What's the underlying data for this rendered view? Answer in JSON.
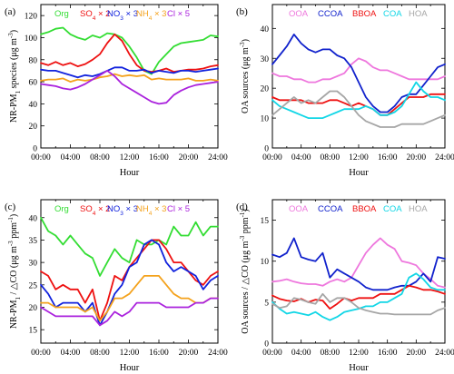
{
  "colors": {
    "green": "#33dd33",
    "red": "#ee1111",
    "blue": "#1122dd",
    "orange": "#f4a21c",
    "purple": "#aa22dd",
    "pink": "#ee77dd",
    "darkblue": "#1122cc",
    "cyan": "#11d6e6",
    "gray": "#a6a6a6"
  },
  "chart_data": [
    {
      "panel": "(a)",
      "type": "line",
      "ylabel": "NR-PM₁ species (μg m⁻³)",
      "ylabel_parts": {
        "pre": "NR-PM",
        "sub": "1",
        "mid": " species (μg m",
        "sup": "-3",
        "post": ")"
      },
      "xlabel": "Hour",
      "x": [
        0,
        1,
        2,
        3,
        4,
        5,
        6,
        7,
        8,
        9,
        10,
        11,
        12,
        13,
        14,
        15,
        16,
        17,
        18,
        19,
        20,
        21,
        22,
        23,
        24
      ],
      "xticks": [
        "00:00",
        "04:00",
        "08:00",
        "12:00",
        "16:00",
        "20:00",
        "24:00"
      ],
      "ylim": [
        0,
        130
      ],
      "yticks": [
        0,
        20,
        40,
        60,
        80,
        100,
        120
      ],
      "legend_position": "top",
      "legend": [
        {
          "label": "Org",
          "sub": "",
          "suffix": "",
          "color": "green"
        },
        {
          "label": "SO",
          "sub": "4",
          "suffix": " × 2",
          "color": "red"
        },
        {
          "label": "NO",
          "sub": "3",
          "suffix": " × 3",
          "color": "blue"
        },
        {
          "label": "NH",
          "sub": "4",
          "suffix": " × 3",
          "color": "orange"
        },
        {
          "label": "Cl",
          "sub": "",
          "suffix": " × 5",
          "color": "purple"
        }
      ],
      "series": [
        {
          "name": "Org",
          "color": "green",
          "values": [
            103,
            105,
            108,
            109,
            103,
            100,
            98,
            102,
            100,
            104,
            103,
            100,
            92,
            82,
            70,
            67,
            78,
            85,
            92,
            95,
            96,
            97,
            98,
            102,
            101
          ]
        },
        {
          "name": "SO4 × 2",
          "color": "red",
          "values": [
            77,
            75,
            78,
            75,
            77,
            74,
            76,
            80,
            85,
            95,
            103,
            97,
            85,
            75,
            70,
            69,
            70,
            72,
            69,
            70,
            71,
            71,
            72,
            74,
            75
          ]
        },
        {
          "name": "NO3 × 3",
          "color": "blue",
          "values": [
            71,
            70,
            70,
            68,
            66,
            64,
            66,
            65,
            67,
            70,
            73,
            73,
            70,
            70,
            71,
            68,
            70,
            69,
            68,
            70,
            70,
            69,
            70,
            71,
            72
          ]
        },
        {
          "name": "NH4 × 3",
          "color": "orange",
          "values": [
            61,
            62,
            62,
            63,
            60,
            62,
            61,
            62,
            64,
            65,
            67,
            65,
            66,
            65,
            66,
            62,
            63,
            62,
            62,
            62,
            63,
            61,
            61,
            62,
            61
          ]
        },
        {
          "name": "Cl × 5",
          "color": "purple",
          "values": [
            58,
            57,
            56,
            54,
            53,
            55,
            58,
            62,
            66,
            70,
            65,
            58,
            54,
            50,
            46,
            42,
            40,
            41,
            48,
            52,
            55,
            57,
            58,
            59,
            60
          ]
        }
      ]
    },
    {
      "panel": "(b)",
      "type": "line",
      "ylabel": "OA sources (μg m⁻³)",
      "ylabel_parts": {
        "pre": "OA sources (μg m",
        "sub": "",
        "mid": "",
        "sup": "-3",
        "post": ")"
      },
      "xlabel": "Hour",
      "x": [
        0,
        1,
        2,
        3,
        4,
        5,
        6,
        7,
        8,
        9,
        10,
        11,
        12,
        13,
        14,
        15,
        16,
        17,
        18,
        19,
        20,
        21,
        22,
        23,
        24
      ],
      "xticks": [
        "00:00",
        "04:00",
        "08:00",
        "12:00",
        "16:00",
        "20:00",
        "24:00"
      ],
      "ylim": [
        0,
        48
      ],
      "yticks": [
        0,
        10,
        20,
        30,
        40
      ],
      "legend_position": "top",
      "legend": [
        {
          "label": "OOA",
          "sub": "",
          "suffix": "",
          "color": "pink"
        },
        {
          "label": "CCOA",
          "sub": "",
          "suffix": "",
          "color": "darkblue"
        },
        {
          "label": "BBOA",
          "sub": "",
          "suffix": "",
          "color": "red"
        },
        {
          "label": "COA",
          "sub": "",
          "suffix": "",
          "color": "cyan"
        },
        {
          "label": "HOA",
          "sub": "",
          "suffix": "",
          "color": "gray"
        }
      ],
      "series": [
        {
          "name": "OOA",
          "color": "pink",
          "values": [
            25,
            24,
            24,
            23,
            23,
            22,
            22,
            23,
            23,
            24,
            25,
            28,
            30,
            29,
            27,
            26,
            26,
            25,
            24,
            23,
            23,
            23,
            23,
            23,
            24
          ]
        },
        {
          "name": "CCOA",
          "color": "darkblue",
          "values": [
            28,
            31,
            34,
            38,
            35,
            33,
            32,
            33,
            33,
            31,
            30,
            27,
            22,
            17,
            14,
            12,
            12,
            14,
            17,
            18,
            18,
            21,
            24,
            27,
            28
          ]
        },
        {
          "name": "BBOA",
          "color": "red",
          "values": [
            17,
            16,
            16,
            16,
            16,
            15,
            15,
            15,
            16,
            16,
            15,
            14,
            15,
            14,
            13,
            11,
            11,
            13,
            15,
            17,
            17,
            17,
            18,
            18,
            18
          ]
        },
        {
          "name": "COA",
          "color": "cyan",
          "values": [
            16,
            14,
            13,
            12,
            11,
            10,
            10,
            10,
            11,
            12,
            13,
            13,
            13,
            14,
            13,
            11,
            11,
            12,
            14,
            18,
            22,
            19,
            17,
            17,
            16
          ]
        },
        {
          "name": "HOA",
          "color": "gray",
          "values": [
            11,
            13,
            15,
            17,
            15,
            16,
            15,
            17,
            19,
            19,
            17,
            14,
            11,
            9,
            8,
            7,
            7,
            7,
            8,
            8,
            8,
            8,
            9,
            10,
            11
          ]
        }
      ]
    },
    {
      "panel": "(c)",
      "type": "line",
      "ylabel": "NR-PM₁ / ΔCO (μg m⁻³ ppm⁻¹)",
      "ylabel_parts": {
        "pre": "NR-PM",
        "sub": "1",
        "mid": " / △CO (μg m",
        "sup": "-3",
        "post": " ppm",
        "sup2": "-1",
        "post2": ")"
      },
      "xlabel": "Hour",
      "x": [
        0,
        1,
        2,
        3,
        4,
        5,
        6,
        7,
        8,
        9,
        10,
        11,
        12,
        13,
        14,
        15,
        16,
        17,
        18,
        19,
        20,
        21,
        22,
        23,
        24
      ],
      "xticks": [
        "00:00",
        "04:00",
        "08:00",
        "12:00",
        "16:00",
        "20:00",
        "24:00"
      ],
      "ylim": [
        12,
        44
      ],
      "yticks": [
        15,
        20,
        25,
        30,
        35,
        40
      ],
      "legend_position": "top",
      "legend": [
        {
          "label": "Org",
          "sub": "",
          "suffix": "",
          "color": "green"
        },
        {
          "label": "SO",
          "sub": "4",
          "suffix": " × 2",
          "color": "red"
        },
        {
          "label": "NO",
          "sub": "3",
          "suffix": " × 3",
          "color": "blue"
        },
        {
          "label": "NH",
          "sub": "4",
          "suffix": " × 3",
          "color": "orange"
        },
        {
          "label": "Cl",
          "sub": "",
          "suffix": " × 5",
          "color": "purple"
        }
      ],
      "series": [
        {
          "name": "Org",
          "color": "green",
          "values": [
            40,
            37,
            36,
            34,
            36,
            34,
            32,
            31,
            27,
            30,
            33,
            31,
            30,
            35,
            34,
            34,
            35,
            34,
            38,
            36,
            36,
            39,
            36,
            38,
            38
          ]
        },
        {
          "name": "SO4 × 2",
          "color": "red",
          "values": [
            28,
            27,
            24,
            25,
            24,
            24,
            21,
            24,
            17,
            21,
            27,
            26,
            29,
            31,
            33,
            35,
            35,
            33,
            30,
            30,
            28,
            26,
            25,
            27,
            28
          ]
        },
        {
          "name": "NO3 × 3",
          "color": "blue",
          "values": [
            25,
            23,
            20,
            21,
            21,
            21,
            19,
            21,
            16,
            19,
            23,
            25,
            29,
            30,
            34,
            35,
            34,
            30,
            28,
            29,
            28,
            27,
            24,
            26,
            27
          ]
        },
        {
          "name": "NH4 × 3",
          "color": "orange",
          "values": [
            21,
            21,
            20,
            20,
            20,
            20,
            19,
            20,
            17,
            19,
            22,
            22,
            23,
            25,
            27,
            27,
            27,
            25,
            23,
            22,
            22,
            21,
            21,
            22,
            22
          ]
        },
        {
          "name": "Cl × 5",
          "color": "purple",
          "values": [
            20,
            19,
            18,
            18,
            18,
            18,
            18,
            18,
            16,
            17,
            19,
            18,
            19,
            21,
            21,
            21,
            21,
            20,
            20,
            20,
            20,
            21,
            21,
            22,
            22
          ]
        }
      ]
    },
    {
      "panel": "(d)",
      "type": "line",
      "ylabel": "OA sources / ΔCO (μg m⁻³ ppm⁻¹)",
      "ylabel_parts": {
        "pre": "OA sources / △CO (μg m",
        "sub": "",
        "mid": "",
        "sup": "-3",
        "post": " ppm",
        "sup2": "-1",
        "post2": ")"
      },
      "xlabel": "Hour",
      "x": [
        0,
        1,
        2,
        3,
        4,
        5,
        6,
        7,
        8,
        9,
        10,
        11,
        12,
        13,
        14,
        15,
        16,
        17,
        18,
        19,
        20,
        21,
        22,
        23,
        24
      ],
      "xticks": [
        "00:00",
        "04:00",
        "08:00",
        "12:00",
        "16:00",
        "20:00",
        "24:00"
      ],
      "ylim": [
        0,
        17.5
      ],
      "yticks": [
        0,
        5,
        10,
        15
      ],
      "legend_position": "top",
      "legend": [
        {
          "label": "OOA",
          "sub": "",
          "suffix": "",
          "color": "pink"
        },
        {
          "label": "CCOA",
          "sub": "",
          "suffix": "",
          "color": "darkblue"
        },
        {
          "label": "BBOA",
          "sub": "",
          "suffix": "",
          "color": "red"
        },
        {
          "label": "COA",
          "sub": "",
          "suffix": "",
          "color": "cyan"
        },
        {
          "label": "HOA",
          "sub": "",
          "suffix": "",
          "color": "gray"
        }
      ],
      "series": [
        {
          "name": "OOA",
          "color": "pink",
          "values": [
            7.5,
            7.6,
            7.8,
            7.5,
            7.3,
            7.2,
            7.2,
            7.0,
            7.5,
            7.8,
            7.5,
            8.0,
            9.5,
            11,
            12,
            12.8,
            12,
            11.5,
            10,
            9.8,
            9.5,
            8.5,
            7.8,
            7.0,
            6.8
          ]
        },
        {
          "name": "CCOA",
          "color": "darkblue",
          "values": [
            10.8,
            10.5,
            11,
            12.8,
            10.5,
            10.2,
            10,
            11,
            8,
            9,
            8.5,
            8,
            7.5,
            6.8,
            6.5,
            6.5,
            6.5,
            6.8,
            7,
            7,
            7.5,
            8.5,
            7.5,
            10.5,
            10.3
          ]
        },
        {
          "name": "BBOA",
          "color": "red",
          "values": [
            5.8,
            5.4,
            5.2,
            5.1,
            5.4,
            5,
            5.3,
            5.2,
            4.2,
            4.8,
            5.5,
            5.2,
            5.5,
            5.5,
            5.5,
            6,
            6,
            6,
            6.5,
            7,
            6.8,
            6.5,
            6.5,
            6.3,
            6
          ]
        },
        {
          "name": "COA",
          "color": "cyan",
          "values": [
            5,
            4.2,
            3.6,
            3.8,
            3.6,
            3.4,
            3.8,
            3.2,
            2.8,
            3.2,
            3.8,
            4,
            4.2,
            4.5,
            4.5,
            5,
            5,
            5.5,
            6,
            8,
            8.5,
            7.8,
            6.8,
            6.5,
            6.5
          ]
        },
        {
          "name": "HOA",
          "color": "gray",
          "values": [
            4.8,
            4.3,
            4.5,
            5.5,
            5.3,
            5,
            4.8,
            6,
            5,
            5.5,
            5.5,
            5,
            4.3,
            4,
            3.8,
            3.6,
            3.6,
            3.5,
            3.5,
            3.5,
            3.5,
            3.5,
            3.5,
            4,
            4.3
          ]
        }
      ]
    }
  ]
}
